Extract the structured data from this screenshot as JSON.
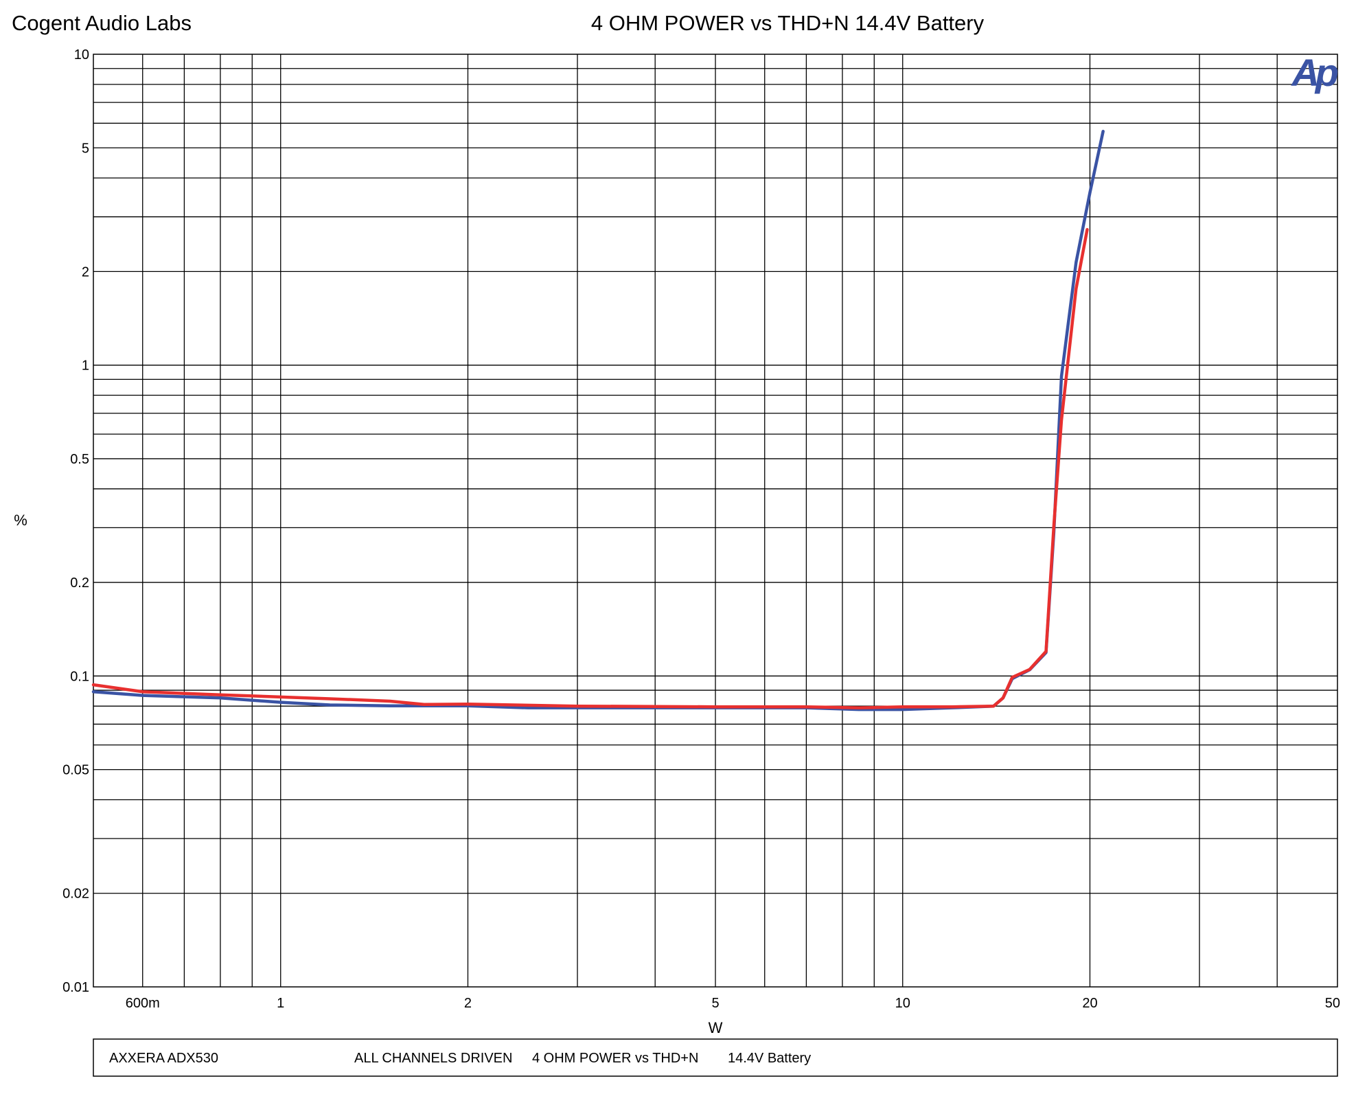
{
  "header": {
    "company": "Cogent Audio Labs",
    "logo": "Ap"
  },
  "footer": {
    "device": "AXXERA ADX530",
    "mode": "ALL CHANNELS DRIVEN",
    "test": "4 OHM  POWER vs THD+N",
    "supply": "14.4V Battery"
  },
  "chart_data": {
    "type": "line",
    "title": "4 OHM POWER vs THD+N   14.4V Battery",
    "x_label": "W",
    "y_label": "%",
    "log_x": true,
    "log_y": true,
    "xlim": [
      0.5,
      50
    ],
    "ylim": [
      0.01,
      10
    ],
    "xticks": [
      {
        "value": 0.6,
        "label": "600m"
      },
      1,
      2,
      5,
      10,
      20,
      50
    ],
    "yticks": [
      0.01,
      0.02,
      0.05,
      0.1,
      0.2,
      0.5,
      1,
      2,
      5,
      10
    ],
    "xgrid": [
      0.6,
      0.7,
      0.8,
      0.9,
      1,
      2,
      3,
      4,
      5,
      6,
      7,
      8,
      9,
      10,
      20,
      30,
      40
    ],
    "ygrid": [
      0.02,
      0.03,
      0.04,
      0.05,
      0.06,
      0.07,
      0.08,
      0.09,
      0.1,
      0.2,
      0.3,
      0.4,
      0.5,
      0.6,
      0.7,
      0.8,
      0.9,
      1,
      2,
      3,
      4,
      5,
      6,
      7,
      8,
      9
    ],
    "series": [
      {
        "color": "#3a53a4",
        "x": [
          0.5,
          0.6,
          0.8,
          1,
          1.2,
          1.5,
          2,
          2.5,
          3,
          4,
          5,
          7,
          8.5,
          10,
          12,
          14,
          14.5,
          15,
          16,
          17,
          17.5,
          18,
          19,
          20,
          21
        ],
        "values": [
          0.089,
          0.0866,
          0.085,
          0.0823,
          0.0807,
          0.0802,
          0.0802,
          0.079,
          0.079,
          0.079,
          0.079,
          0.079,
          0.078,
          0.078,
          0.079,
          0.08,
          0.085,
          0.098,
          0.1047,
          0.119,
          0.29,
          0.92,
          2.14,
          3.59,
          5.65
        ]
      },
      {
        "color": "#e8302f",
        "x": [
          0.5,
          0.6,
          0.8,
          1,
          1.2,
          1.5,
          1.7,
          2,
          3,
          5,
          7,
          8.5,
          10,
          12,
          14,
          14.5,
          15,
          16,
          17,
          17.5,
          18,
          19,
          19.8
        ],
        "values": [
          0.0937,
          0.089,
          0.087,
          0.0856,
          0.0845,
          0.083,
          0.081,
          0.0812,
          0.08,
          0.0796,
          0.0796,
          0.079,
          0.0796,
          0.0796,
          0.08,
          0.085,
          0.099,
          0.105,
          0.12,
          0.305,
          0.665,
          1.76,
          2.73
        ]
      }
    ]
  }
}
